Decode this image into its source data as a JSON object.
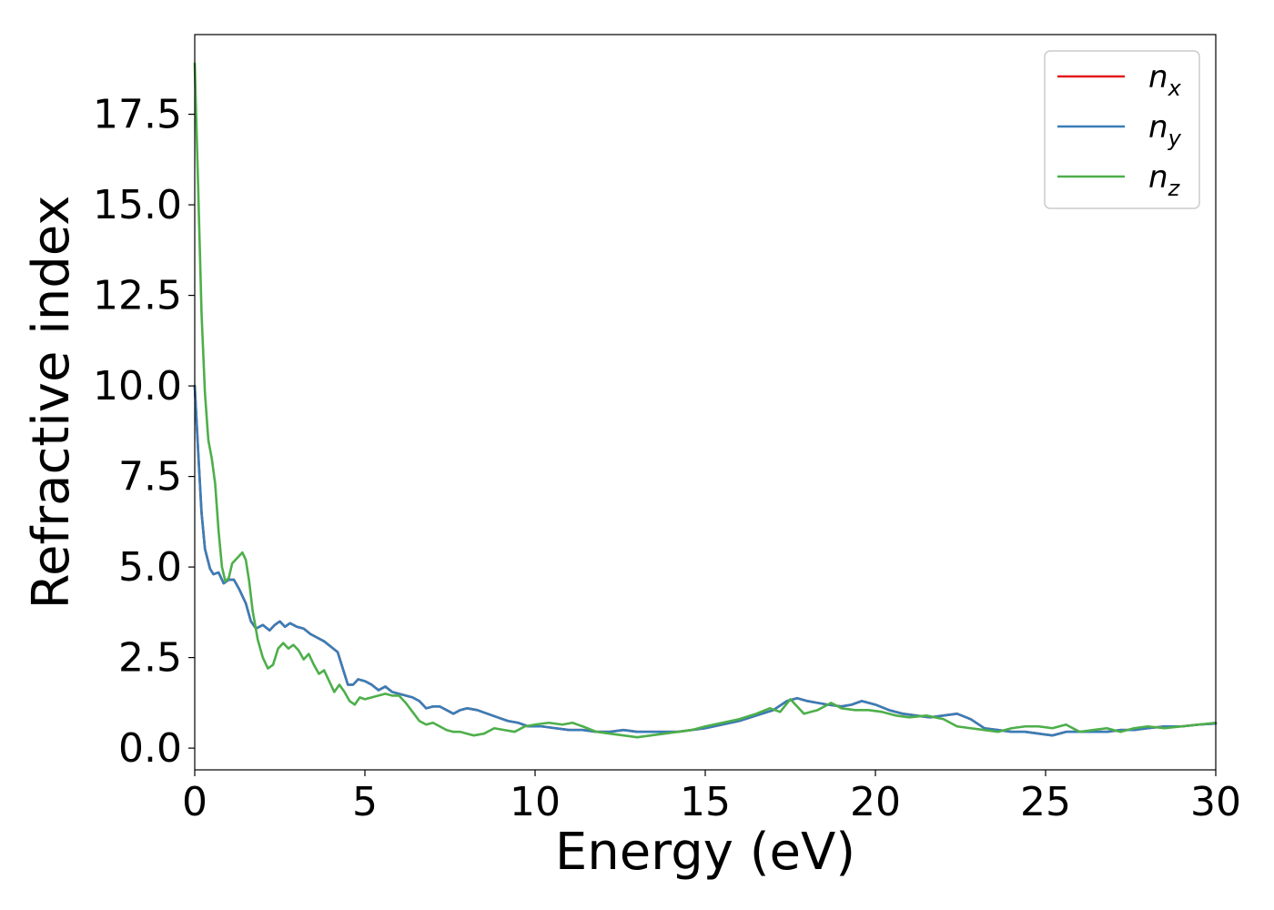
{
  "chart_data": {
    "type": "line",
    "title": "",
    "xlabel": "Energy (eV)",
    "ylabel": "Refractive index",
    "xlim": [
      0,
      30
    ],
    "ylim": [
      -0.6,
      19.7
    ],
    "xticks": [
      "0",
      "5",
      "10",
      "15",
      "20",
      "25",
      "30"
    ],
    "yticks": [
      "0.0",
      "2.5",
      "5.0",
      "7.5",
      "10.0",
      "12.5",
      "15.0",
      "17.5"
    ],
    "grid": false,
    "legend_position": "top-right",
    "series": [
      {
        "name": "n_x",
        "label_base": "n",
        "label_sub": "x",
        "color": "#e41a1c",
        "points": [
          [
            0,
            10.0
          ],
          [
            0.1,
            8.2
          ],
          [
            0.2,
            6.5
          ],
          [
            0.3,
            5.5
          ],
          [
            0.45,
            4.95
          ],
          [
            0.55,
            4.8
          ],
          [
            0.7,
            4.85
          ],
          [
            0.85,
            4.55
          ],
          [
            1.0,
            4.65
          ],
          [
            1.15,
            4.65
          ],
          [
            1.3,
            4.4
          ],
          [
            1.5,
            4.0
          ],
          [
            1.65,
            3.5
          ],
          [
            1.8,
            3.3
          ],
          [
            2.0,
            3.4
          ],
          [
            2.2,
            3.25
          ],
          [
            2.35,
            3.4
          ],
          [
            2.5,
            3.5
          ],
          [
            2.65,
            3.35
          ],
          [
            2.8,
            3.45
          ],
          [
            3.0,
            3.35
          ],
          [
            3.2,
            3.3
          ],
          [
            3.4,
            3.15
          ],
          [
            3.6,
            3.05
          ],
          [
            3.8,
            2.95
          ],
          [
            4.0,
            2.8
          ],
          [
            4.2,
            2.65
          ],
          [
            4.35,
            2.2
          ],
          [
            4.5,
            1.75
          ],
          [
            4.65,
            1.75
          ],
          [
            4.8,
            1.9
          ],
          [
            5.0,
            1.85
          ],
          [
            5.2,
            1.75
          ],
          [
            5.4,
            1.6
          ],
          [
            5.6,
            1.7
          ],
          [
            5.8,
            1.55
          ],
          [
            6.0,
            1.5
          ],
          [
            6.2,
            1.45
          ],
          [
            6.4,
            1.4
          ],
          [
            6.6,
            1.3
          ],
          [
            6.8,
            1.1
          ],
          [
            7.0,
            1.15
          ],
          [
            7.2,
            1.15
          ],
          [
            7.4,
            1.05
          ],
          [
            7.6,
            0.95
          ],
          [
            7.8,
            1.05
          ],
          [
            8.0,
            1.1
          ],
          [
            8.3,
            1.05
          ],
          [
            8.6,
            0.95
          ],
          [
            8.9,
            0.85
          ],
          [
            9.2,
            0.75
          ],
          [
            9.5,
            0.7
          ],
          [
            9.8,
            0.6
          ],
          [
            10.2,
            0.6
          ],
          [
            10.6,
            0.55
          ],
          [
            11.0,
            0.5
          ],
          [
            11.4,
            0.5
          ],
          [
            11.8,
            0.45
          ],
          [
            12.2,
            0.45
          ],
          [
            12.6,
            0.5
          ],
          [
            13.0,
            0.45
          ],
          [
            13.4,
            0.45
          ],
          [
            13.8,
            0.45
          ],
          [
            14.2,
            0.45
          ],
          [
            14.6,
            0.5
          ],
          [
            15.0,
            0.55
          ],
          [
            15.5,
            0.65
          ],
          [
            16.0,
            0.75
          ],
          [
            16.5,
            0.9
          ],
          [
            17.0,
            1.05
          ],
          [
            17.4,
            1.3
          ],
          [
            17.7,
            1.38
          ],
          [
            18.0,
            1.3
          ],
          [
            18.3,
            1.25
          ],
          [
            18.6,
            1.2
          ],
          [
            19.0,
            1.15
          ],
          [
            19.3,
            1.2
          ],
          [
            19.6,
            1.3
          ],
          [
            20.0,
            1.2
          ],
          [
            20.4,
            1.05
          ],
          [
            20.8,
            0.95
          ],
          [
            21.2,
            0.9
          ],
          [
            21.6,
            0.85
          ],
          [
            22.0,
            0.9
          ],
          [
            22.4,
            0.95
          ],
          [
            22.8,
            0.8
          ],
          [
            23.2,
            0.55
          ],
          [
            23.6,
            0.5
          ],
          [
            24.0,
            0.45
          ],
          [
            24.4,
            0.45
          ],
          [
            24.8,
            0.4
          ],
          [
            25.2,
            0.35
          ],
          [
            25.6,
            0.45
          ],
          [
            26.0,
            0.45
          ],
          [
            26.4,
            0.45
          ],
          [
            26.8,
            0.45
          ],
          [
            27.2,
            0.5
          ],
          [
            27.6,
            0.5
          ],
          [
            28.0,
            0.55
          ],
          [
            28.5,
            0.6
          ],
          [
            29.0,
            0.6
          ],
          [
            29.5,
            0.65
          ],
          [
            30.0,
            0.68
          ]
        ]
      },
      {
        "name": "n_y",
        "label_base": "n",
        "label_sub": "y",
        "color": "#377eb8",
        "points": [
          [
            0,
            10.0
          ],
          [
            0.1,
            8.2
          ],
          [
            0.2,
            6.5
          ],
          [
            0.3,
            5.5
          ],
          [
            0.45,
            4.95
          ],
          [
            0.55,
            4.8
          ],
          [
            0.7,
            4.85
          ],
          [
            0.85,
            4.55
          ],
          [
            1.0,
            4.65
          ],
          [
            1.15,
            4.65
          ],
          [
            1.3,
            4.4
          ],
          [
            1.5,
            4.0
          ],
          [
            1.65,
            3.5
          ],
          [
            1.8,
            3.3
          ],
          [
            2.0,
            3.4
          ],
          [
            2.2,
            3.25
          ],
          [
            2.35,
            3.4
          ],
          [
            2.5,
            3.5
          ],
          [
            2.65,
            3.35
          ],
          [
            2.8,
            3.45
          ],
          [
            3.0,
            3.35
          ],
          [
            3.2,
            3.3
          ],
          [
            3.4,
            3.15
          ],
          [
            3.6,
            3.05
          ],
          [
            3.8,
            2.95
          ],
          [
            4.0,
            2.8
          ],
          [
            4.2,
            2.65
          ],
          [
            4.35,
            2.2
          ],
          [
            4.5,
            1.75
          ],
          [
            4.65,
            1.75
          ],
          [
            4.8,
            1.9
          ],
          [
            5.0,
            1.85
          ],
          [
            5.2,
            1.75
          ],
          [
            5.4,
            1.6
          ],
          [
            5.6,
            1.7
          ],
          [
            5.8,
            1.55
          ],
          [
            6.0,
            1.5
          ],
          [
            6.2,
            1.45
          ],
          [
            6.4,
            1.4
          ],
          [
            6.6,
            1.3
          ],
          [
            6.8,
            1.1
          ],
          [
            7.0,
            1.15
          ],
          [
            7.2,
            1.15
          ],
          [
            7.4,
            1.05
          ],
          [
            7.6,
            0.95
          ],
          [
            7.8,
            1.05
          ],
          [
            8.0,
            1.1
          ],
          [
            8.3,
            1.05
          ],
          [
            8.6,
            0.95
          ],
          [
            8.9,
            0.85
          ],
          [
            9.2,
            0.75
          ],
          [
            9.5,
            0.7
          ],
          [
            9.8,
            0.6
          ],
          [
            10.2,
            0.6
          ],
          [
            10.6,
            0.55
          ],
          [
            11.0,
            0.5
          ],
          [
            11.4,
            0.5
          ],
          [
            11.8,
            0.45
          ],
          [
            12.2,
            0.45
          ],
          [
            12.6,
            0.5
          ],
          [
            13.0,
            0.45
          ],
          [
            13.4,
            0.45
          ],
          [
            13.8,
            0.45
          ],
          [
            14.2,
            0.45
          ],
          [
            14.6,
            0.5
          ],
          [
            15.0,
            0.55
          ],
          [
            15.5,
            0.65
          ],
          [
            16.0,
            0.75
          ],
          [
            16.5,
            0.9
          ],
          [
            17.0,
            1.05
          ],
          [
            17.4,
            1.3
          ],
          [
            17.7,
            1.38
          ],
          [
            18.0,
            1.3
          ],
          [
            18.3,
            1.25
          ],
          [
            18.6,
            1.2
          ],
          [
            19.0,
            1.15
          ],
          [
            19.3,
            1.2
          ],
          [
            19.6,
            1.3
          ],
          [
            20.0,
            1.2
          ],
          [
            20.4,
            1.05
          ],
          [
            20.8,
            0.95
          ],
          [
            21.2,
            0.9
          ],
          [
            21.6,
            0.85
          ],
          [
            22.0,
            0.9
          ],
          [
            22.4,
            0.95
          ],
          [
            22.8,
            0.8
          ],
          [
            23.2,
            0.55
          ],
          [
            23.6,
            0.5
          ],
          [
            24.0,
            0.45
          ],
          [
            24.4,
            0.45
          ],
          [
            24.8,
            0.4
          ],
          [
            25.2,
            0.35
          ],
          [
            25.6,
            0.45
          ],
          [
            26.0,
            0.45
          ],
          [
            26.4,
            0.45
          ],
          [
            26.8,
            0.45
          ],
          [
            27.2,
            0.5
          ],
          [
            27.6,
            0.5
          ],
          [
            28.0,
            0.55
          ],
          [
            28.5,
            0.6
          ],
          [
            29.0,
            0.6
          ],
          [
            29.5,
            0.65
          ],
          [
            30.0,
            0.68
          ]
        ]
      },
      {
        "name": "n_z",
        "label_base": "n",
        "label_sub": "z",
        "color": "#4daf4a",
        "points": [
          [
            0,
            18.9
          ],
          [
            0.1,
            15.5
          ],
          [
            0.2,
            12.0
          ],
          [
            0.3,
            9.8
          ],
          [
            0.4,
            8.5
          ],
          [
            0.5,
            8.0
          ],
          [
            0.6,
            7.3
          ],
          [
            0.7,
            6.0
          ],
          [
            0.8,
            5.0
          ],
          [
            0.9,
            4.6
          ],
          [
            1.0,
            4.7
          ],
          [
            1.1,
            5.1
          ],
          [
            1.2,
            5.2
          ],
          [
            1.3,
            5.3
          ],
          [
            1.4,
            5.4
          ],
          [
            1.5,
            5.2
          ],
          [
            1.6,
            4.6
          ],
          [
            1.7,
            3.8
          ],
          [
            1.85,
            3.0
          ],
          [
            2.0,
            2.5
          ],
          [
            2.15,
            2.2
          ],
          [
            2.3,
            2.3
          ],
          [
            2.45,
            2.75
          ],
          [
            2.6,
            2.9
          ],
          [
            2.75,
            2.75
          ],
          [
            2.9,
            2.85
          ],
          [
            3.05,
            2.7
          ],
          [
            3.2,
            2.45
          ],
          [
            3.35,
            2.6
          ],
          [
            3.5,
            2.3
          ],
          [
            3.65,
            2.05
          ],
          [
            3.8,
            2.15
          ],
          [
            3.95,
            1.85
          ],
          [
            4.1,
            1.55
          ],
          [
            4.25,
            1.75
          ],
          [
            4.4,
            1.55
          ],
          [
            4.55,
            1.3
          ],
          [
            4.7,
            1.2
          ],
          [
            4.85,
            1.4
          ],
          [
            5.0,
            1.35
          ],
          [
            5.2,
            1.4
          ],
          [
            5.4,
            1.45
          ],
          [
            5.6,
            1.5
          ],
          [
            5.8,
            1.45
          ],
          [
            6.0,
            1.45
          ],
          [
            6.2,
            1.25
          ],
          [
            6.4,
            1.0
          ],
          [
            6.6,
            0.75
          ],
          [
            6.8,
            0.65
          ],
          [
            7.0,
            0.7
          ],
          [
            7.2,
            0.6
          ],
          [
            7.4,
            0.5
          ],
          [
            7.6,
            0.45
          ],
          [
            7.8,
            0.45
          ],
          [
            8.0,
            0.4
          ],
          [
            8.2,
            0.35
          ],
          [
            8.5,
            0.4
          ],
          [
            8.8,
            0.55
          ],
          [
            9.1,
            0.5
          ],
          [
            9.4,
            0.45
          ],
          [
            9.7,
            0.6
          ],
          [
            10.0,
            0.65
          ],
          [
            10.4,
            0.7
          ],
          [
            10.8,
            0.65
          ],
          [
            11.1,
            0.7
          ],
          [
            11.4,
            0.6
          ],
          [
            11.8,
            0.45
          ],
          [
            12.2,
            0.4
          ],
          [
            12.6,
            0.35
          ],
          [
            13.0,
            0.3
          ],
          [
            13.4,
            0.35
          ],
          [
            13.8,
            0.4
          ],
          [
            14.2,
            0.45
          ],
          [
            14.6,
            0.5
          ],
          [
            15.0,
            0.6
          ],
          [
            15.5,
            0.7
          ],
          [
            16.0,
            0.8
          ],
          [
            16.5,
            0.95
          ],
          [
            16.9,
            1.1
          ],
          [
            17.2,
            1.0
          ],
          [
            17.5,
            1.35
          ],
          [
            17.9,
            0.95
          ],
          [
            18.3,
            1.05
          ],
          [
            18.7,
            1.25
          ],
          [
            19.0,
            1.1
          ],
          [
            19.4,
            1.05
          ],
          [
            19.8,
            1.05
          ],
          [
            20.2,
            1.0
          ],
          [
            20.6,
            0.9
          ],
          [
            21.0,
            0.85
          ],
          [
            21.5,
            0.9
          ],
          [
            22.0,
            0.8
          ],
          [
            22.4,
            0.6
          ],
          [
            22.8,
            0.55
          ],
          [
            23.2,
            0.5
          ],
          [
            23.6,
            0.45
          ],
          [
            24.0,
            0.55
          ],
          [
            24.4,
            0.6
          ],
          [
            24.8,
            0.6
          ],
          [
            25.2,
            0.55
          ],
          [
            25.6,
            0.65
          ],
          [
            26.0,
            0.45
          ],
          [
            26.4,
            0.5
          ],
          [
            26.8,
            0.55
          ],
          [
            27.2,
            0.45
          ],
          [
            27.6,
            0.55
          ],
          [
            28.0,
            0.6
          ],
          [
            28.5,
            0.55
          ],
          [
            29.0,
            0.6
          ],
          [
            29.5,
            0.65
          ],
          [
            30.0,
            0.7
          ]
        ]
      }
    ]
  }
}
